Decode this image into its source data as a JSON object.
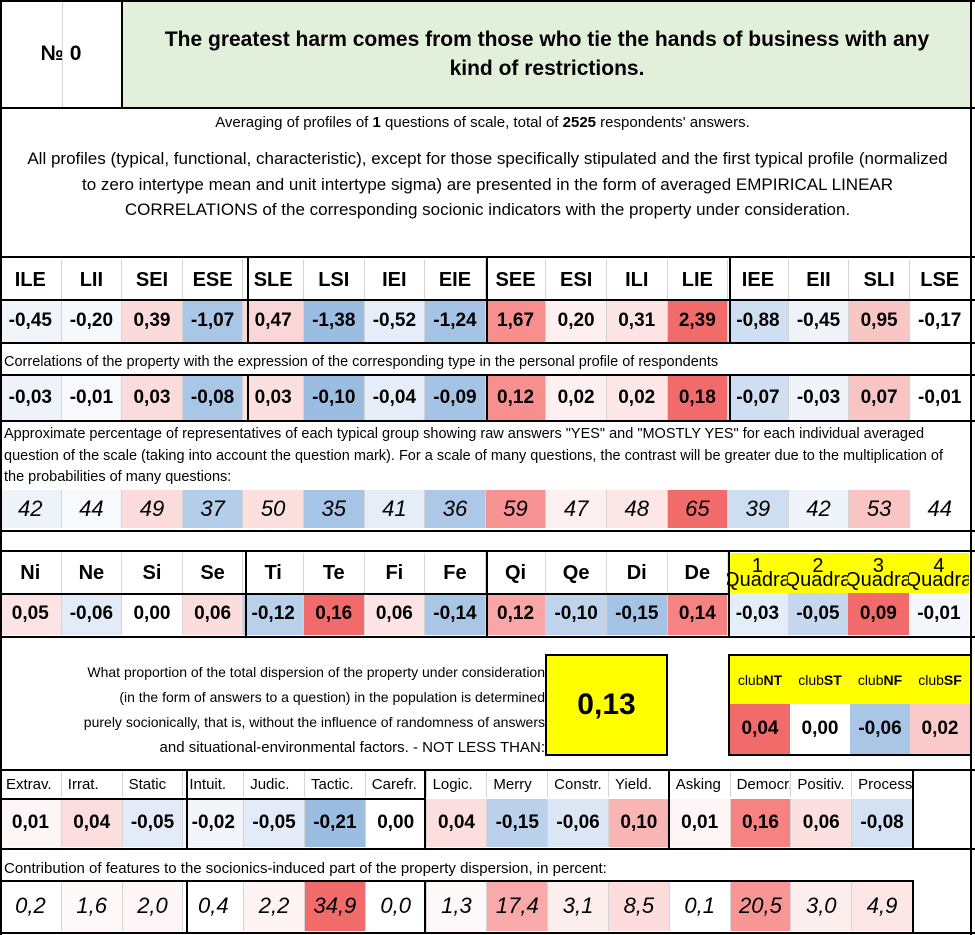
{
  "header": {
    "number_label": "№ 0",
    "statement": "The greatest harm comes from those who tie the hands of business with any kind of restrictions."
  },
  "averaging": {
    "prefix": "Averaging of profiles of ",
    "question_count": "1",
    "middle": " questions of scale, total of ",
    "answer_count": "2525",
    "suffix": " respondents' answers."
  },
  "description": "All profiles (typical, functional, characteristic), except for those specifically stipulated and the first typical profile (normalized to zero intertype mean and unit intertype sigma) are presented in the form of averaged EMPIRICAL LINEAR CORRELATIONS of the corresponding socionic indicators with the property under consideration.",
  "types": {
    "labels": [
      "ILE",
      "LII",
      "SEI",
      "ESE",
      "SLE",
      "LSI",
      "IEI",
      "EIE",
      "SEE",
      "ESI",
      "ILI",
      "LIE",
      "IEE",
      "EII",
      "SLI",
      "LSE"
    ],
    "values": [
      "-0,45",
      "-0,20",
      "0,39",
      "-1,07",
      "0,47",
      "-1,38",
      "-0,52",
      "-1,24",
      "1,67",
      "0,20",
      "0,31",
      "2,39",
      "-0,88",
      "-0,45",
      "0,95",
      "-0,17"
    ],
    "colors": [
      "#f0f5fb",
      "#f5f8fc",
      "#fbdada",
      "#a9c6e6",
      "#fbd6d6",
      "#9bbde2",
      "#e4edf8",
      "#a4c3e5",
      "#f88f8f",
      "#fef0f0",
      "#fde4e4",
      "#f26b6b",
      "#cfdff1",
      "#eef3fa",
      "#f9c6c6",
      "#ffffff"
    ]
  },
  "correlation_note": "Correlations of the property with the expression of the corresponding type in the personal profile of respondents",
  "correlations": {
    "values": [
      "-0,03",
      "-0,01",
      "0,03",
      "-0,08",
      "0,03",
      "-0,10",
      "-0,04",
      "-0,09",
      "0,12",
      "0,02",
      "0,02",
      "0,18",
      "-0,07",
      "-0,03",
      "0,07",
      "-0,01"
    ],
    "colors": [
      "#eef3fa",
      "#f7f9fc",
      "#fbdcdc",
      "#a9c6e6",
      "#fcdfdf",
      "#9bbde2",
      "#e4edf8",
      "#a4c3e5",
      "#f88f8f",
      "#fef0f0",
      "#fde6e6",
      "#f26b6b",
      "#cfdff1",
      "#eff4fa",
      "#f9c4c4",
      "#ffffff"
    ]
  },
  "percentage_note": "Approximate percentage of representatives of each typical group showing raw answers \"YES\" and \"MOSTLY YES\" for each individual averaged question of the scale (taking into account the question mark). For a scale of many questions, the contrast will be greater due to the multiplication of the probabilities of many questions:",
  "percentages": {
    "values": [
      "42",
      "44",
      "49",
      "37",
      "50",
      "35",
      "41",
      "36",
      "59",
      "47",
      "48",
      "65",
      "39",
      "42",
      "53",
      "44"
    ],
    "colors": [
      "#eef3fa",
      "#f7f9fc",
      "#fbdcdc",
      "#b4cde9",
      "#fcdfdf",
      "#a6c4e5",
      "#e4edf8",
      "#acc8e6",
      "#f89393",
      "#fef0f0",
      "#fde6e6",
      "#f26b6b",
      "#cddef1",
      "#eff4fa",
      "#f9c4c4",
      "#ffffff"
    ]
  },
  "functions": {
    "labels": [
      "Ni",
      "Ne",
      "Si",
      "Se",
      "Ti",
      "Te",
      "Fi",
      "Fe",
      "Qi",
      "Qe",
      "Di",
      "De"
    ],
    "values": [
      "0,05",
      "-0,06",
      "0,00",
      "0,06",
      "-0,12",
      "0,16",
      "0,06",
      "-0,14",
      "0,12",
      "-0,10",
      "-0,15",
      "0,14"
    ],
    "colors": [
      "#fde4e4",
      "#e2ebf7",
      "#ffffff",
      "#fcdcdc",
      "#b9d0ea",
      "#f26b6b",
      "#fde4e4",
      "#a9c6e6",
      "#f9a6a6",
      "#bfd4ec",
      "#a4c3e5",
      "#f68282"
    ]
  },
  "quadras": {
    "labels": [
      [
        "1",
        "Quadra"
      ],
      [
        "2",
        "Quadra"
      ],
      [
        "3",
        "Quadra"
      ],
      [
        "4",
        "Quadra"
      ]
    ],
    "values": [
      "-0,03",
      "-0,05",
      "0,09",
      "-0,01"
    ],
    "colors": [
      "#e4edf8",
      "#c5d8ee",
      "#f26b6b",
      "#f4f7fc"
    ],
    "header_color": "#ffff00"
  },
  "dispersion": {
    "text_lines": [
      "What proportion of the total dispersion of the property under consideration",
      "(in the form of answers to a question) in the population is determined",
      "purely socionically, that is, without the influence of randomness of answers",
      "and situational-environmental factors. - NOT LESS THAN:"
    ],
    "value": "0,13",
    "box_color": "#ffff00"
  },
  "clubs": {
    "labels": [
      [
        "club",
        "NT"
      ],
      [
        "club",
        "ST"
      ],
      [
        "club",
        "NF"
      ],
      [
        "club",
        "SF"
      ]
    ],
    "values": [
      "0,04",
      "0,00",
      "-0,06",
      "0,02"
    ],
    "colors": [
      "#f26b6b",
      "#ffffff",
      "#a9c6e6",
      "#fbcaca"
    ],
    "header_color": "#ffff00"
  },
  "traits": {
    "labels": [
      "Extrav.",
      "Irrat.",
      "Static",
      "Intuit.",
      "Judic.",
      "Tactic.",
      "Carefr.",
      "Logic.",
      "Merry",
      "Constr.",
      "Yield.",
      "Asking",
      "Democr.",
      "Positiv.",
      "Process"
    ],
    "values": [
      "0,01",
      "0,04",
      "-0,05",
      "-0,02",
      "-0,05",
      "-0,21",
      "0,00",
      "0,04",
      "-0,15",
      "-0,06",
      "0,10",
      "0,01",
      "0,16",
      "0,06",
      "-0,08"
    ],
    "colors": [
      "#fef6f6",
      "#fcdede",
      "#e2ebf7",
      "#f2f6fb",
      "#e2ebf7",
      "#9bbde2",
      "#ffffff",
      "#fcdede",
      "#bbd1eb",
      "#dce7f5",
      "#f9b4b4",
      "#fef6f6",
      "#f68282",
      "#fce0e0",
      "#d3e1f2"
    ]
  },
  "contribution_note": "Contribution of features to the socionics-induced part of the property dispersion, in percent:",
  "contributions": {
    "values": [
      "0,2",
      "1,6",
      "2,0",
      "0,4",
      "2,2",
      "34,9",
      "0,0",
      "1,3",
      "17,4",
      "3,1",
      "8,5",
      "0,1",
      "20,5",
      "3,0",
      "4,9"
    ],
    "colors": [
      "#ffffff",
      "#fef8f8",
      "#fef6f6",
      "#ffffff",
      "#fef4f4",
      "#f26b6b",
      "#ffffff",
      "#fef8f8",
      "#f9a9a9",
      "#fdeeee",
      "#fcdcdc",
      "#ffffff",
      "#f89595",
      "#fdeeee",
      "#fce6e6"
    ]
  }
}
